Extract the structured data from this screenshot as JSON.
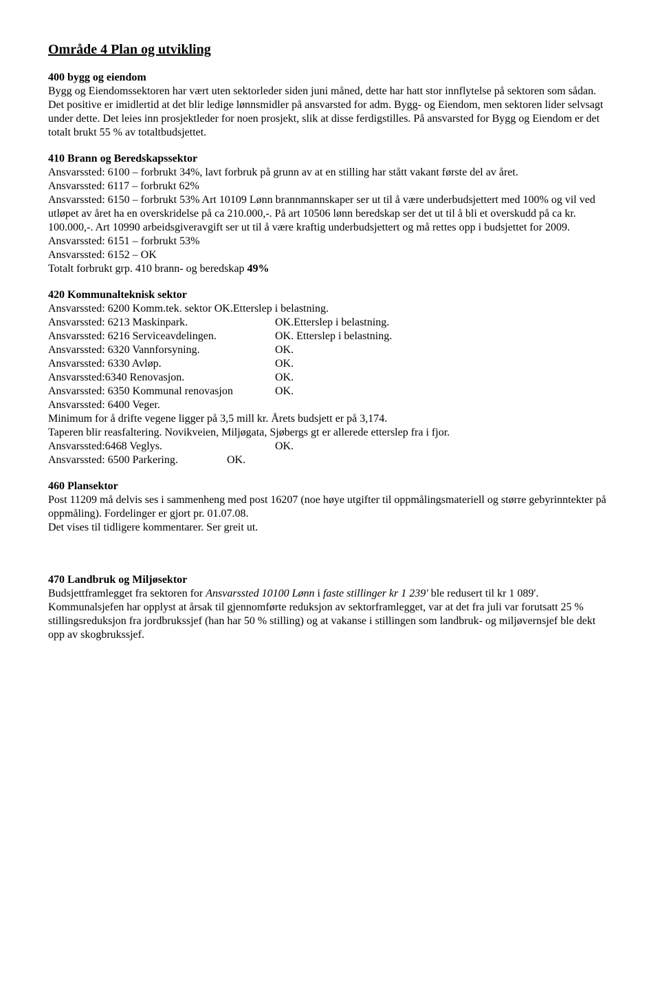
{
  "title": "Område 4 Plan og utvikling",
  "s400": {
    "heading": "400 bygg og eiendom",
    "body": "Bygg og Eiendomssektoren har vært uten sektorleder siden juni måned, dette har hatt stor innflytelse på sektoren som sådan. Det positive er imidlertid at det blir ledige lønnsmidler på ansvarsted for adm. Bygg- og Eiendom, men sektoren lider selvsagt under dette. Det leies inn prosjektleder for noen prosjekt, slik at disse ferdigstilles. På ansvarsted for Bygg og Eiendom er det totalt brukt 55 % av totaltbudsjettet."
  },
  "s410": {
    "heading": "410 Brann og Beredskapssektor",
    "l1": "Ansvarssted: 6100 – forbrukt 34%, lavt forbruk på grunn av at en stilling har stått vakant første del av året.",
    "l2": "Ansvarssted: 6117 – forbrukt 62%",
    "l3": "Ansvarssted: 6150 –  forbrukt 53%  Art 10109 Lønn brannmannskaper ser ut til å være underbudsjettert med 100% og vil ved utløpet av året ha en overskridelse på ca 210.000,-. På art 10506 lønn beredskap ser det ut til å bli et overskudd på ca kr. 100.000,-. Art 10990 arbeidsgiveravgift ser ut til å være kraftig underbudsjettert og må rettes opp i budsjettet for 2009.",
    "l4": "Ansvarssted: 6151 – forbrukt 53%",
    "l5": "Ansvarssted: 6152 – OK",
    "l6a": "Totalt forbrukt grp. 410 brann- og beredskap ",
    "l6b": "49%"
  },
  "s420": {
    "heading": "420 Kommunalteknisk sektor",
    "r1": "Ansvarssted: 6200 Komm.tek. sektor OK.Etterslep i belastning.",
    "r2a": " Ansvarssted: 6213 Maskinpark.",
    "r2b": "OK.Etterslep i belastning.",
    "r3a": "Ansvarssted: 6216 Serviceavdelingen.",
    "r3b": "OK. Etterslep i belastning.",
    "r4a": "Ansvarssted: 6320 Vannforsyning.",
    "r4b": "OK.",
    "r5a": "Ansvarssted: 6330 Avløp.",
    "r5b": "OK.",
    "r6a": "Ansvarssted:6340 Renovasjon.",
    "r6b": "OK.",
    "r7a": "Ansvarssted: 6350 Kommunal renovasjon",
    "r7b": "OK.",
    "r8": "Ansvarssted: 6400 Veger.",
    "r9": "Minimum for å drifte vegene ligger på 3,5 mill kr. Årets budsjett er på 3,174.",
    "r10": "Taperen blir reasfaltering. Novikveien, Miljøgata, Sjøbergs gt er allerede etterslep fra i fjor.",
    "r11a": "Ansvarssted:6468 Veglys.",
    "r11b": "OK.",
    "r12a": "Ansvarssted: 6500 Parkering.",
    "r12b": "OK."
  },
  "s460": {
    "heading": "460 Plansektor",
    "l1": "Post 11209 må delvis ses i sammenheng med post 16207 (noe høye utgifter til oppmålingsmateriell og større gebyrinntekter på oppmåling). Fordelinger er gjort pr. 01.07.08.",
    "l2": "Det vises til tidligere kommentarer. Ser greit ut."
  },
  "s470": {
    "heading": "470 Landbruk og Miljøsektor",
    "p1a": "Budsjettframlegget fra sektoren for ",
    "p1b": "Ansvarssted 10100 Lønn",
    "p1c": " i ",
    "p1d": "faste stillinger kr 1 239'",
    "p1e": "  ble redusert til kr 1 089'.  Kommunalsjefen har opplyst at årsak til gjennomførte reduksjon av sektorframlegget, var at det fra juli var forutsatt 25 % stillingsreduksjon fra jordbrukssjef (han har 50 % stilling) og at vakanse i stillingen som landbruk- og miljøvernsjef ble dekt opp av skogbrukssjef."
  }
}
